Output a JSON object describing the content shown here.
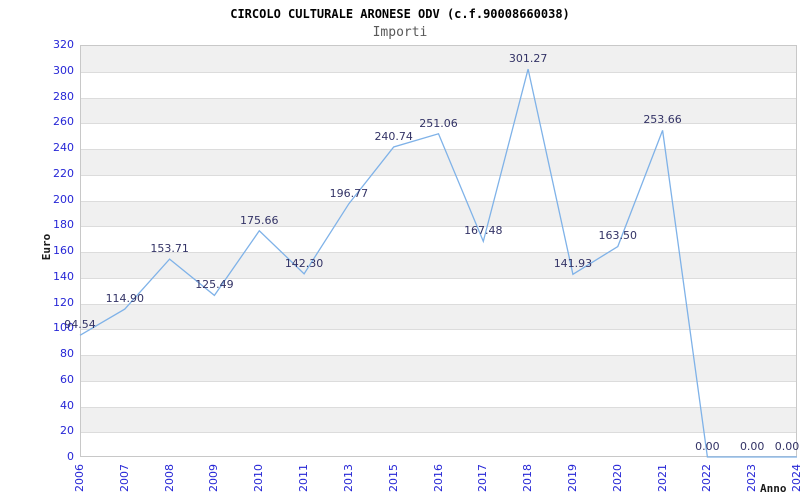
{
  "chart_data": {
    "type": "line",
    "title": "CIRCOLO CULTURALE ARONESE ODV (c.f.90008660038)",
    "subtitle": "Importi",
    "xlabel": "Anno",
    "ylabel": "Euro",
    "categories": [
      "2006",
      "2007",
      "2008",
      "2009",
      "2010",
      "2011",
      "2013",
      "2015",
      "2016",
      "2017",
      "2018",
      "2019",
      "2020",
      "2021",
      "2022",
      "2023",
      "2024"
    ],
    "series": [
      {
        "name": "Importi",
        "values": [
          94.54,
          114.9,
          153.71,
          125.49,
          175.66,
          142.3,
          196.77,
          240.74,
          251.06,
          167.48,
          301.27,
          141.93,
          163.5,
          253.66,
          0.0,
          0.0,
          0.0
        ]
      }
    ],
    "ylim": [
      0,
      320
    ],
    "ytick_step": 20,
    "grid": "horizontal-gridlines-with-alternating-bands",
    "legend": "none",
    "data_labels": true,
    "x_tick_rotation": -90,
    "colors": {
      "line": "#7fb2e8",
      "tick_label": "#2626d6",
      "data_label": "#333366",
      "band": "#f0f0f0",
      "gridline": "#dcdcdc",
      "plot_border": "#c8c8c8",
      "title": "#000000",
      "subtitle": "#595959",
      "axis_title": "#1a1a1a",
      "background": "#ffffff"
    }
  }
}
